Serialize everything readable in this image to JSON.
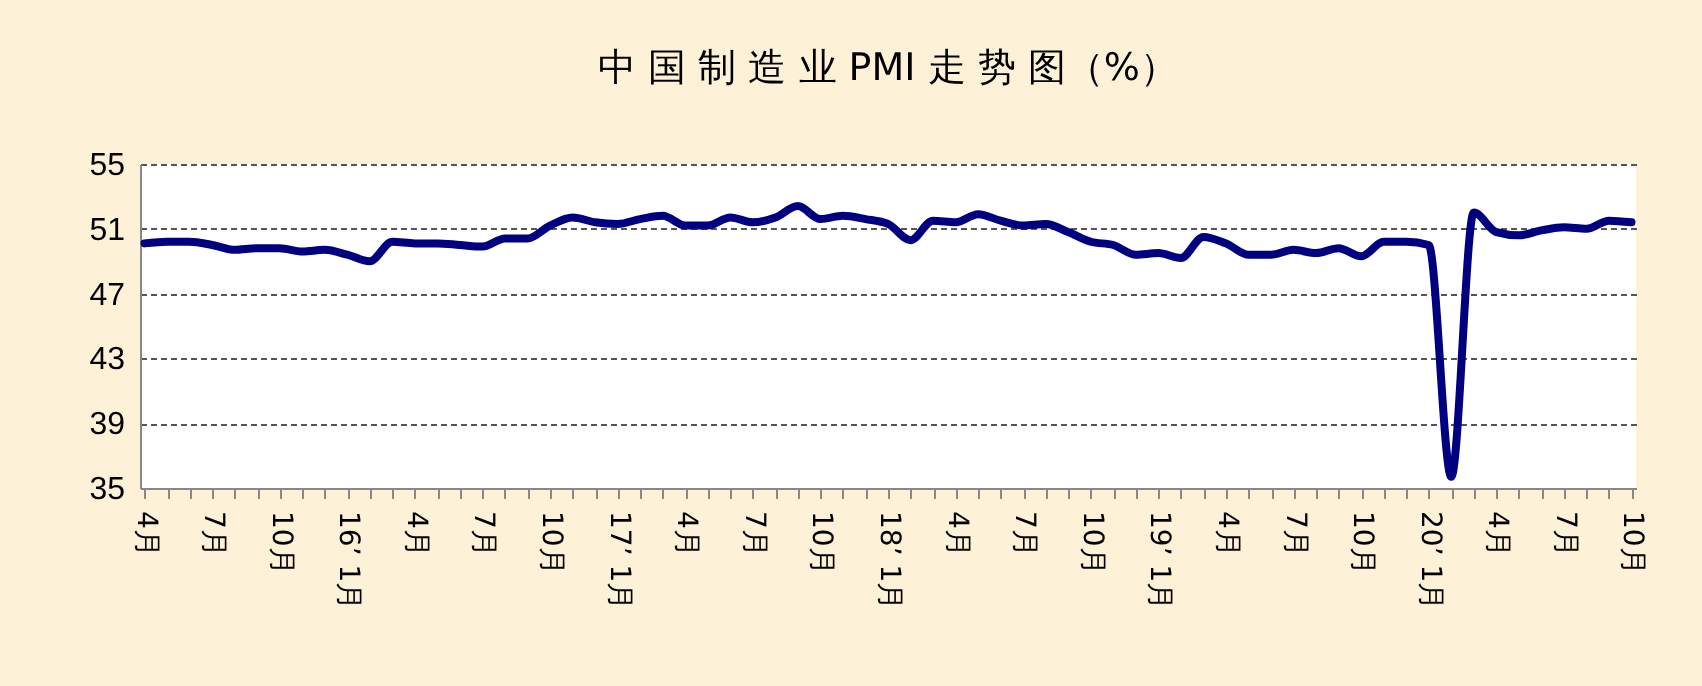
{
  "chart_data": {
    "type": "line",
    "title": "中 国 制 造 业 PMI 走 势 图（%）",
    "categories": [
      "4月",
      null,
      null,
      "7月",
      null,
      null,
      "10月",
      null,
      null,
      "16’ 1月",
      null,
      null,
      "4月",
      null,
      null,
      "7月",
      null,
      null,
      "10月",
      null,
      null,
      "17’ 1月",
      null,
      null,
      "4月",
      null,
      null,
      "7月",
      null,
      null,
      "10月",
      null,
      null,
      "18’ 1月",
      null,
      null,
      "4月",
      null,
      null,
      "7月",
      null,
      null,
      "10月",
      null,
      null,
      "19’ 1月",
      null,
      null,
      "4月",
      null,
      null,
      "7月",
      null,
      null,
      "10月",
      null,
      null,
      "20’ 1月",
      null,
      null,
      "4月",
      null,
      null,
      "7月",
      null,
      null,
      "10月"
    ],
    "series": [
      {
        "color": "#000080",
        "values": [
          50.1,
          50.2,
          50.2,
          50.0,
          49.7,
          49.8,
          49.8,
          49.6,
          49.7,
          49.4,
          49.0,
          50.2,
          50.1,
          50.1,
          50.0,
          49.9,
          50.4,
          50.4,
          51.2,
          51.7,
          51.4,
          51.3,
          51.6,
          51.8,
          51.2,
          51.2,
          51.7,
          51.4,
          51.7,
          52.4,
          51.6,
          51.8,
          51.6,
          51.3,
          50.3,
          51.5,
          51.4,
          51.9,
          51.5,
          51.2,
          51.3,
          50.8,
          50.2,
          50.0,
          49.4,
          49.5,
          49.2,
          50.5,
          50.1,
          49.4,
          49.4,
          49.7,
          49.5,
          49.8,
          49.3,
          50.2,
          50.2,
          50.0,
          35.7,
          52.0,
          50.8,
          50.6,
          50.9,
          51.1,
          51.0,
          51.5,
          51.4
        ]
      }
    ],
    "ylim": [
      35,
      55
    ],
    "yticks": [
      35,
      39,
      43,
      47,
      51,
      55
    ],
    "grid": "y",
    "marker": "none",
    "line_style": "solid",
    "legend": false
  }
}
